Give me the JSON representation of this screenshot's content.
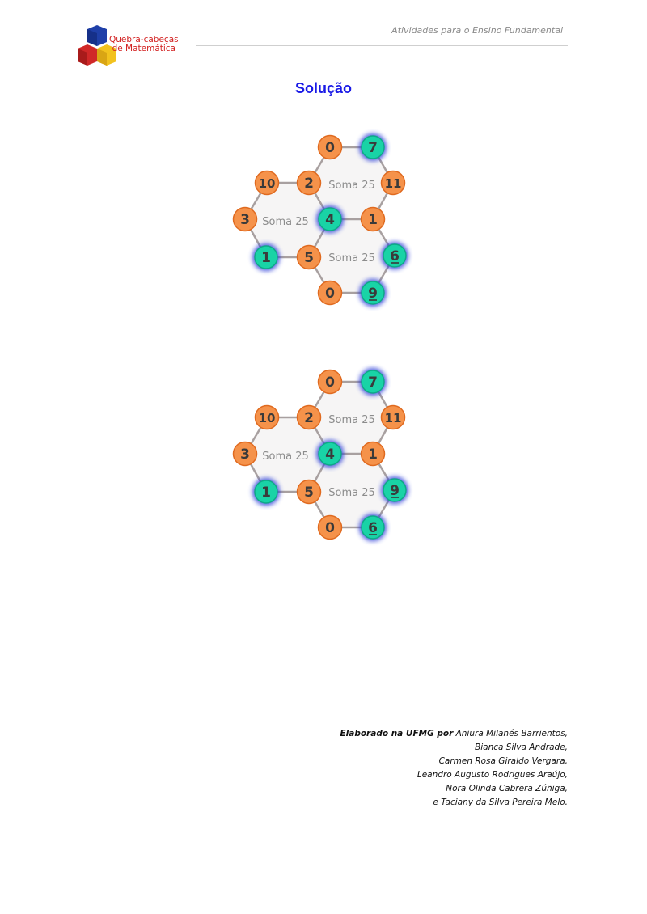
{
  "header": {
    "subtitle": "Atividades para o Ensino Fundamental",
    "logo_line1": "Quebra-cabeças",
    "logo_line2": "de Matemática"
  },
  "title": "Solução",
  "puzzles": [
    {
      "nodes": [
        {
          "id": "a",
          "value": "0",
          "color": "orange",
          "underline": false
        },
        {
          "id": "b",
          "value": "7",
          "color": "teal",
          "underline": false
        },
        {
          "id": "c",
          "value": "10",
          "color": "orange",
          "underline": false
        },
        {
          "id": "d",
          "value": "2",
          "color": "orange",
          "underline": false
        },
        {
          "id": "e",
          "value": "11",
          "color": "orange",
          "underline": false
        },
        {
          "id": "f",
          "value": "3",
          "color": "orange",
          "underline": false
        },
        {
          "id": "g",
          "value": "4",
          "color": "teal",
          "underline": false
        },
        {
          "id": "h",
          "value": "1",
          "color": "orange",
          "underline": false
        },
        {
          "id": "i",
          "value": "1",
          "color": "teal",
          "underline": false
        },
        {
          "id": "j",
          "value": "5",
          "color": "orange",
          "underline": false
        },
        {
          "id": "k",
          "value": "6",
          "color": "teal",
          "underline": true
        },
        {
          "id": "l",
          "value": "0",
          "color": "orange",
          "underline": false
        },
        {
          "id": "m",
          "value": "9",
          "color": "teal",
          "underline": true
        }
      ],
      "sums": [
        "Soma 25",
        "Soma 25",
        "Soma 25"
      ]
    },
    {
      "nodes": [
        {
          "id": "a",
          "value": "0",
          "color": "orange",
          "underline": false
        },
        {
          "id": "b",
          "value": "7",
          "color": "teal",
          "underline": false
        },
        {
          "id": "c",
          "value": "10",
          "color": "orange",
          "underline": false
        },
        {
          "id": "d",
          "value": "2",
          "color": "orange",
          "underline": false
        },
        {
          "id": "e",
          "value": "11",
          "color": "orange",
          "underline": false
        },
        {
          "id": "f",
          "value": "3",
          "color": "orange",
          "underline": false
        },
        {
          "id": "g",
          "value": "4",
          "color": "teal",
          "underline": false
        },
        {
          "id": "h",
          "value": "1",
          "color": "orange",
          "underline": false
        },
        {
          "id": "i",
          "value": "1",
          "color": "teal",
          "underline": false
        },
        {
          "id": "j",
          "value": "5",
          "color": "orange",
          "underline": false
        },
        {
          "id": "k",
          "value": "9",
          "color": "teal",
          "underline": true
        },
        {
          "id": "l",
          "value": "0",
          "color": "orange",
          "underline": false
        },
        {
          "id": "m",
          "value": "6",
          "color": "teal",
          "underline": true
        }
      ],
      "sums": [
        "Soma 25",
        "Soma 25",
        "Soma 25"
      ]
    }
  ],
  "colors": {
    "orange": "#f5924a",
    "orange_stroke": "#e06a1f",
    "teal": "#19d3a6",
    "teal_glow": "#2b3ed8",
    "edge": "#a8a0a0",
    "title": "#1a1ae6"
  },
  "credits": {
    "lead": "Elaborado na UFMG por",
    "line1": "Aniura Milanés Barrientos,",
    "line2": "Bianca Silva Andrade,",
    "line3": "Carmen Rosa Giraldo Vergara,",
    "line4": "Leandro Augusto Rodrigues Araújo,",
    "line5": "Nora Olinda Cabrera Zúñiga,",
    "line6": "e Taciany da Silva Pereira Melo."
  }
}
